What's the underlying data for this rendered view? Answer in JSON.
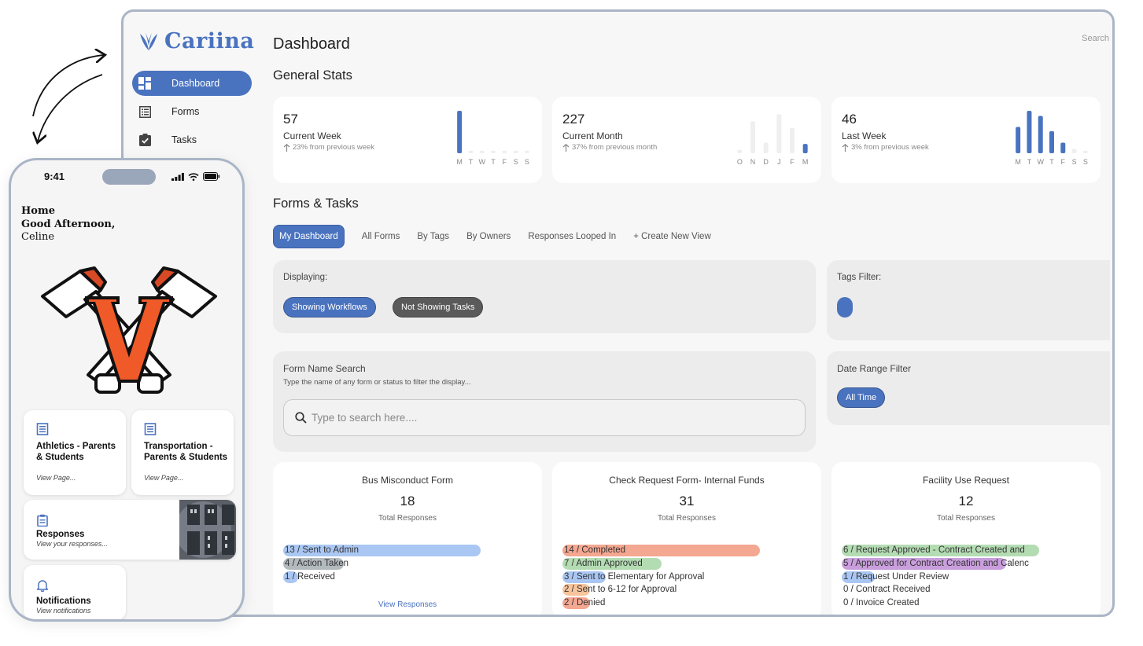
{
  "desktop": {
    "brand": "Cariina",
    "nav": [
      {
        "label": "Dashboard",
        "icon": "dashboard-icon",
        "active": true
      },
      {
        "label": "Forms",
        "icon": "forms-icon",
        "active": false
      },
      {
        "label": "Tasks",
        "icon": "tasks-icon",
        "active": false
      }
    ],
    "page_title": "Dashboard",
    "search_placeholder": "Search",
    "general_stats_title": "General Stats",
    "stats": [
      {
        "value": "57",
        "label": "Current Week",
        "sub": "23% from previous week",
        "days": [
          "M",
          "T",
          "W",
          "T",
          "F",
          "S",
          "S"
        ],
        "bars": [
          1.0,
          0.06,
          0.06,
          0.06,
          0.06,
          0.06,
          0.06
        ],
        "highlight": [
          true,
          false,
          false,
          false,
          false,
          false,
          false
        ]
      },
      {
        "value": "227",
        "label": "Current Month",
        "sub": "37% from previous month",
        "days": [
          "O",
          "N",
          "D",
          "J",
          "F",
          "M"
        ],
        "bars": [
          0.08,
          0.75,
          0.25,
          0.92,
          0.6,
          0.22
        ],
        "highlight": [
          false,
          false,
          false,
          false,
          false,
          true
        ]
      },
      {
        "value": "46",
        "label": "Last Week",
        "sub": "3% from previous week",
        "days": [
          "M",
          "T",
          "W",
          "T",
          "F",
          "S",
          "S"
        ],
        "bars": [
          0.62,
          1.0,
          0.88,
          0.52,
          0.25,
          0.1,
          0.06
        ],
        "highlight": [
          true,
          true,
          true,
          true,
          true,
          false,
          false
        ]
      }
    ],
    "forms_tasks_title": "Forms & Tasks",
    "tabs": [
      "My Dashboard",
      "All Forms",
      "By Tags",
      "By Owners",
      "Responses Looped In",
      "+ Create New View"
    ],
    "displaying": {
      "label": "Displaying:",
      "workflows": "Showing Workflows",
      "tasks": "Not Showing Tasks"
    },
    "tags_filter_label": "Tags Filter:",
    "form_search": {
      "title": "Form Name Search",
      "hint": "Type the name of any form or status to filter the display...",
      "placeholder": "Type to search here...."
    },
    "date_filter": {
      "label": "Date Range Filter",
      "value": "All Time"
    },
    "colors": {
      "accent": "#4a73bf",
      "blue": "#8db4ef",
      "gray": "#9aa3a8",
      "green": "#9bd09a",
      "salmon": "#f08a6c",
      "orange": "#f5b07a",
      "purple": "#b77ed1"
    },
    "forms": [
      {
        "title": "Bus Misconduct Form",
        "count": "18",
        "sub": "Total Responses",
        "link": "View Responses",
        "statuses": [
          {
            "text": "13 / Sent to Admin",
            "frac": 0.78,
            "color": "#8db4ef"
          },
          {
            "text": "4 / Action Taken",
            "frac": 0.24,
            "color": "#9aa3a8"
          },
          {
            "text": "1 / Received",
            "frac": 0.06,
            "color": "#8db4ef"
          }
        ]
      },
      {
        "title": "Check Request Form- Internal Funds",
        "count": "31",
        "sub": "Total Responses",
        "link": "",
        "statuses": [
          {
            "text": "14 / Completed",
            "frac": 0.78,
            "color": "#f08a6c"
          },
          {
            "text": "7 / Admin Approved",
            "frac": 0.39,
            "color": "#9bd09a"
          },
          {
            "text": "3 / Sent to Elementary for Approval",
            "frac": 0.17,
            "color": "#8db4ef"
          },
          {
            "text": "2 / Sent to 6-12 for Approval",
            "frac": 0.11,
            "color": "#f5b07a"
          },
          {
            "text": "2 / Denied",
            "frac": 0.11,
            "color": "#f08a6c"
          }
        ]
      },
      {
        "title": "Facility Use Request",
        "count": "12",
        "sub": "Total Responses",
        "link": "",
        "statuses": [
          {
            "text": "6 / Request Approved - Contract Created and",
            "frac": 0.78,
            "color": "#9bd09a"
          },
          {
            "text": "5 / Approved for Contract Creation and Calenc",
            "frac": 0.65,
            "color": "#b77ed1"
          },
          {
            "text": "1 / Request Under Review",
            "frac": 0.13,
            "color": "#8db4ef"
          },
          {
            "text": "0 / Contract Received",
            "frac": 0,
            "color": "#8db4ef"
          },
          {
            "text": "0 / Invoice Created",
            "frac": 0,
            "color": "#8db4ef"
          }
        ]
      }
    ]
  },
  "phone": {
    "time": "9:41",
    "heading": "Home",
    "greeting": "Good Afternoon,",
    "name": "Celine",
    "tiles": [
      {
        "title": "Athletics - Parents & Students",
        "sub": "View Page...",
        "icon": "document-icon"
      },
      {
        "title": "Transportation - Parents & Students",
        "sub": "View Page...",
        "icon": "document-icon"
      },
      {
        "title": "Responses",
        "sub": "View your responses...",
        "icon": "clipboard-icon"
      },
      {
        "title": "Notifications",
        "sub": "View notifications",
        "icon": "bell-icon"
      }
    ]
  }
}
